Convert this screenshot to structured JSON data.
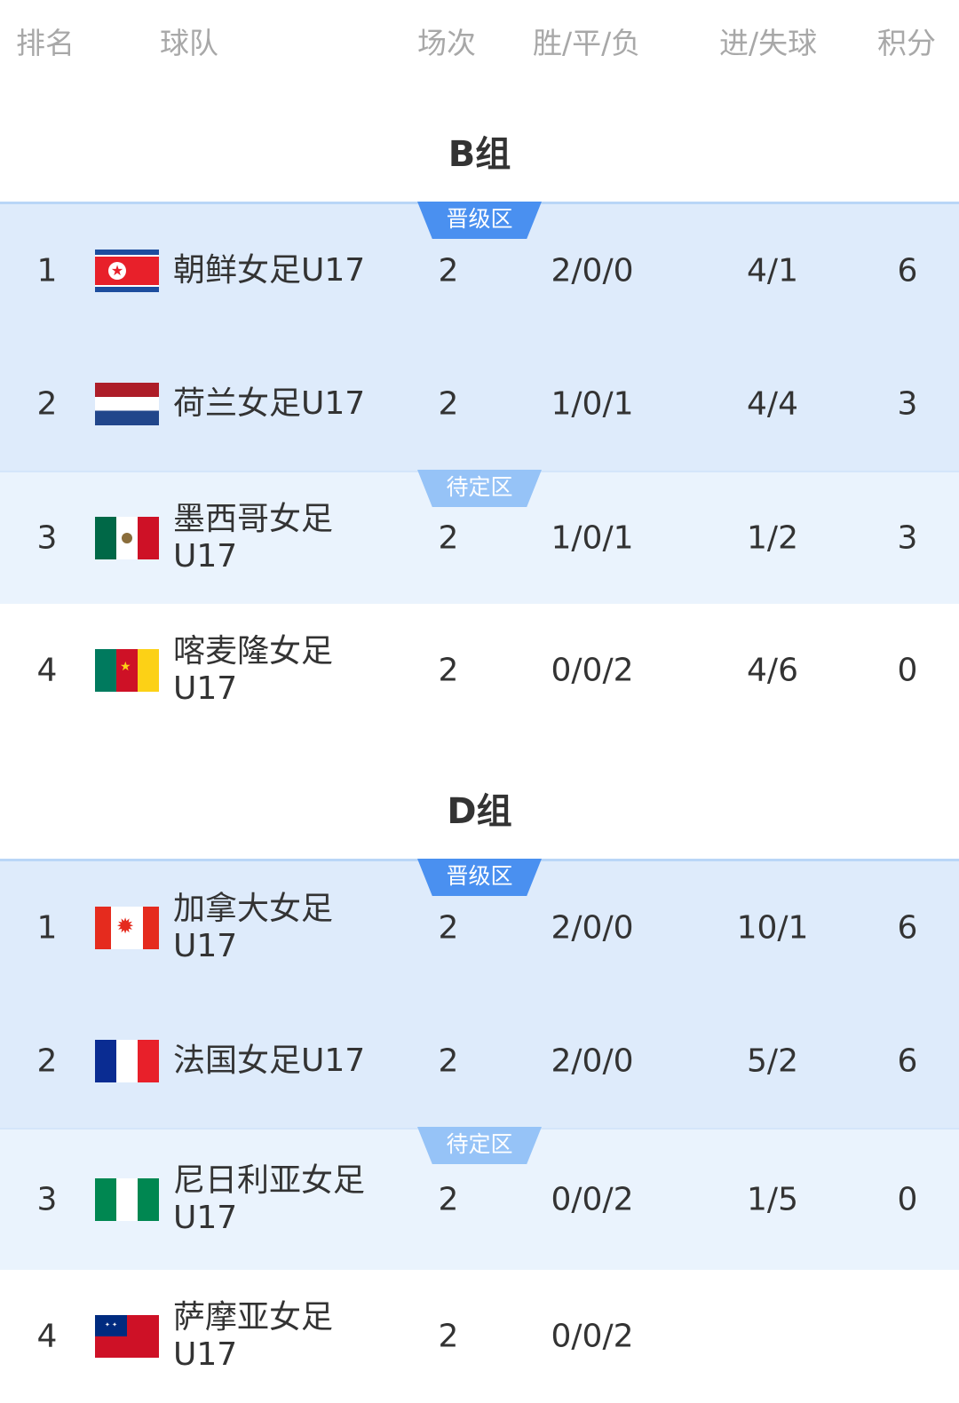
{
  "header": {
    "rank": "排名",
    "team": "球队",
    "matches": "场次",
    "wdl": "胜/平/负",
    "goals": "进/失球",
    "points": "积分"
  },
  "zones": {
    "qualified": "晋级区",
    "pending": "待定区"
  },
  "colors": {
    "qualified_bg": "#deebfb",
    "pending_bg": "#eaf3fd",
    "qualified_badge": "#4a90f0",
    "pending_badge": "#96c3f7"
  },
  "groups": [
    {
      "title": "B组",
      "rows": [
        {
          "rank": "1",
          "flag": "north-korea-flag",
          "team": "朝鲜女足U17",
          "matches": "2",
          "wdl": "2/0/0",
          "goals": "4/1",
          "points": "6"
        },
        {
          "rank": "2",
          "flag": "netherlands-flag",
          "team": "荷兰女足U17",
          "matches": "2",
          "wdl": "1/0/1",
          "goals": "4/4",
          "points": "3"
        },
        {
          "rank": "3",
          "flag": "mexico-flag",
          "team": "墨西哥女足U17",
          "matches": "2",
          "wdl": "1/0/1",
          "goals": "1/2",
          "points": "3"
        },
        {
          "rank": "4",
          "flag": "cameroon-flag",
          "team": "喀麦隆女足U17",
          "matches": "2",
          "wdl": "0/0/2",
          "goals": "4/6",
          "points": "0"
        }
      ]
    },
    {
      "title": "D组",
      "rows": [
        {
          "rank": "1",
          "flag": "canada-flag",
          "team": "加拿大女足U17",
          "matches": "2",
          "wdl": "2/0/0",
          "goals": "10/1",
          "points": "6"
        },
        {
          "rank": "2",
          "flag": "france-flag",
          "team": "法国女足U17",
          "matches": "2",
          "wdl": "2/0/0",
          "goals": "5/2",
          "points": "6"
        },
        {
          "rank": "3",
          "flag": "nigeria-flag",
          "team": "尼日利亚女足U17",
          "matches": "2",
          "wdl": "0/0/2",
          "goals": "1/5",
          "points": "0"
        },
        {
          "rank": "4",
          "flag": "samoa-flag",
          "team": "萨摩亚女足U17",
          "matches": "2",
          "wdl": "0/0/2",
          "goals": "",
          "points": ""
        }
      ]
    }
  ]
}
